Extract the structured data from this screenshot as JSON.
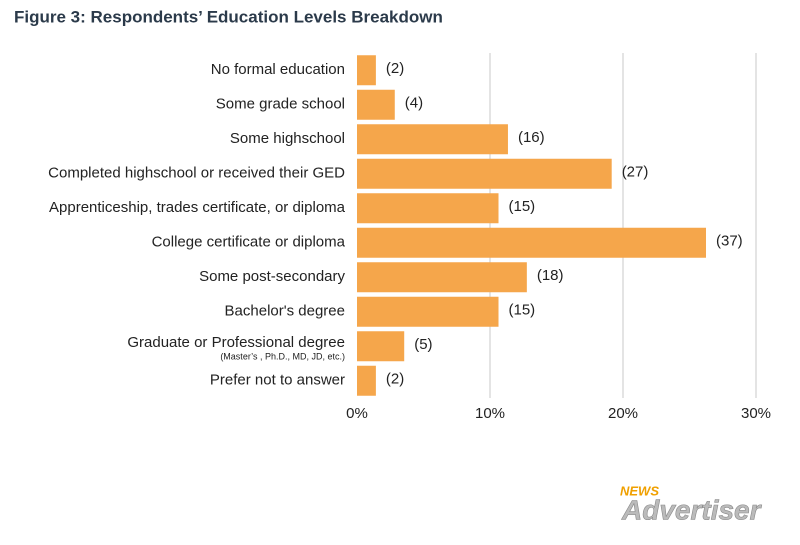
{
  "chart_data": {
    "type": "barh",
    "title": "Figure 3: Respondents’ Education Levels Breakdown",
    "categories": [
      "No formal education",
      "Some grade school",
      "Some highschool",
      "Completed highschool or received their GED",
      "Apprenticeship, trades certificate, or diploma",
      "College certificate or diploma",
      "Some post-secondary",
      "Bachelor's degree",
      "Graduate or Professional degree",
      "Prefer not to answer"
    ],
    "category_notes": [
      null,
      null,
      null,
      null,
      null,
      null,
      null,
      null,
      "(Master’s , Ph.D., MD, JD, etc.)",
      null
    ],
    "values": [
      1.42,
      2.84,
      11.35,
      19.15,
      10.64,
      26.24,
      12.77,
      10.64,
      3.55,
      1.42
    ],
    "value_labels": [
      "(2)",
      "(4)",
      "(16)",
      "(27)",
      "(15)",
      "(37)",
      "(18)",
      "(15)",
      "(5)",
      "(2)"
    ],
    "color": "#f5a64b",
    "xlim": [
      0,
      30
    ],
    "xticks": [
      {
        "value": 0,
        "label": "0%"
      },
      {
        "value": 10,
        "label": "10%"
      },
      {
        "value": 20,
        "label": "20%"
      },
      {
        "value": 30,
        "label": "30%"
      }
    ],
    "grid": true,
    "watermark": {
      "small": "NEWS",
      "large": "Advertiser"
    }
  }
}
